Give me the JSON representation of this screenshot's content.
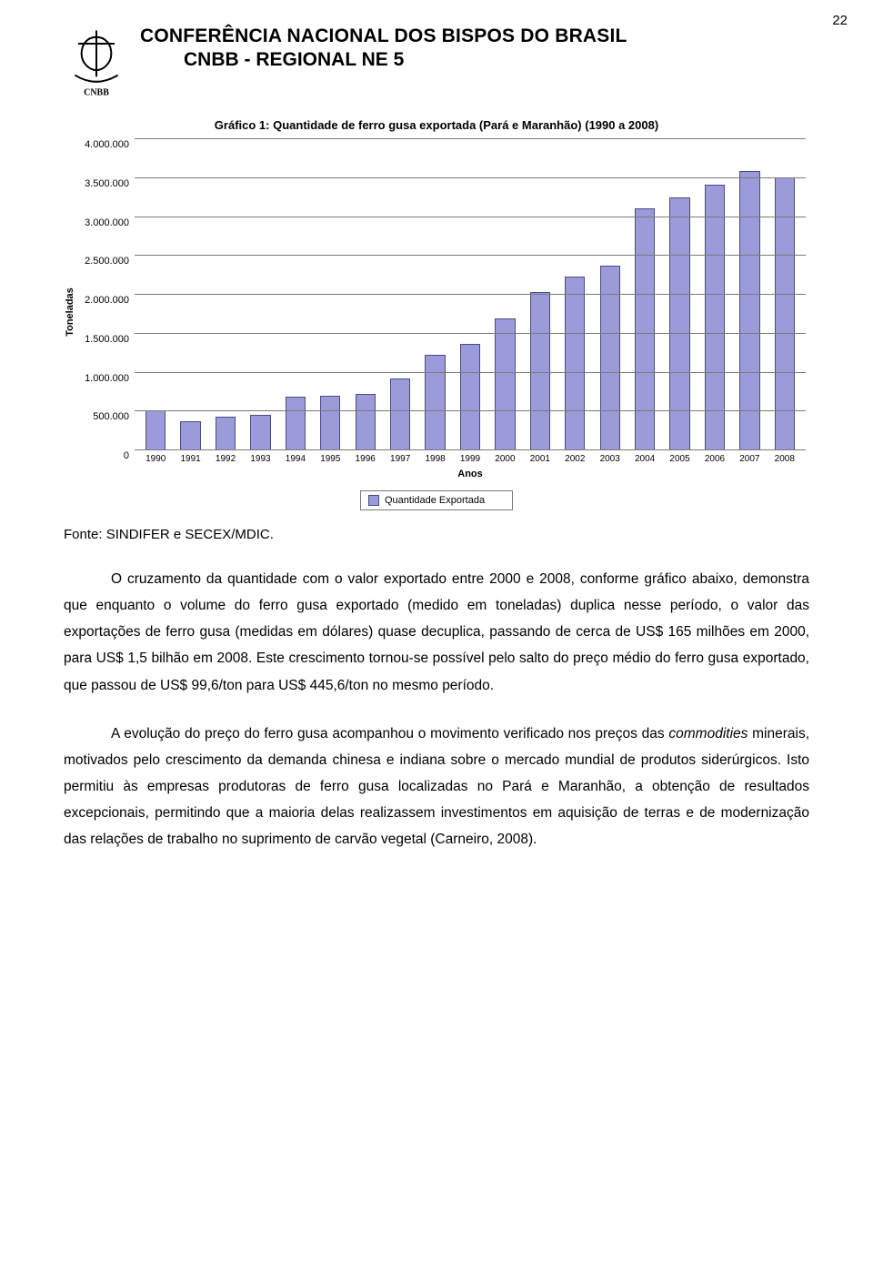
{
  "page_number": "22",
  "header": {
    "title": "CONFERÊNCIA NACIONAL DOS BISPOS DO BRASIL",
    "subtitle": "CNBB - REGIONAL NE 5",
    "logo_label": "CNBB"
  },
  "chart": {
    "type": "bar",
    "caption": "Gráfico 1: Quantidade de ferro gusa exportada (Pará e Maranhão) (1990 a 2008)",
    "ylabel": "Toneladas",
    "xlabel": "Anos",
    "categories": [
      "1990",
      "1991",
      "1992",
      "1993",
      "1994",
      "1995",
      "1996",
      "1997",
      "1998",
      "1999",
      "2000",
      "2001",
      "2002",
      "2003",
      "2004",
      "2005",
      "2006",
      "2007",
      "2008"
    ],
    "values": [
      520000,
      370000,
      430000,
      460000,
      690000,
      700000,
      720000,
      920000,
      1230000,
      1370000,
      1700000,
      2030000,
      2230000,
      2370000,
      3110000,
      3250000,
      3420000,
      3590000,
      3510000
    ],
    "y_ticks": [
      {
        "v": 0,
        "label": "0"
      },
      {
        "v": 500000,
        "label": "500.000"
      },
      {
        "v": 1000000,
        "label": "1.000.000"
      },
      {
        "v": 1500000,
        "label": "1.500.000"
      },
      {
        "v": 2000000,
        "label": "2.000.000"
      },
      {
        "v": 2500000,
        "label": "2.500.000"
      },
      {
        "v": 3000000,
        "label": "3.000.000"
      },
      {
        "v": 3500000,
        "label": "3.500.000"
      },
      {
        "v": 4000000,
        "label": "4.000.000"
      }
    ],
    "ylim": [
      0,
      4000000
    ],
    "bar_fill": "#9b9bd9",
    "bar_border": "#4a4a8a",
    "grid_color": "#7a7a7a",
    "background_color": "#ffffff",
    "tick_fontsize": 11,
    "caption_fontsize": 13,
    "bar_width": 0.58,
    "legend_label": "Quantidade Exportada"
  },
  "source_line": "Fonte: SINDIFER e SECEX/MDIC.",
  "paragraphs": {
    "p1": "O cruzamento da quantidade com o valor exportado entre 2000 e 2008, conforme gráfico abaixo, demonstra que enquanto o volume do ferro gusa exportado (medido em toneladas) duplica nesse período, o valor das exportações de ferro gusa (medidas em dólares) quase decuplica, passando de cerca de US$ 165 milhões em 2000, para US$ 1,5 bilhão em 2008. Este crescimento tornou-se possível pelo salto do preço médio do ferro gusa exportado, que passou de US$ 99,6/ton para US$ 445,6/ton no mesmo período.",
    "p2_pre": "A evolução do preço do ferro gusa acompanhou o movimento verificado nos preços das ",
    "p2_em": "commodities",
    "p2_post": " minerais, motivados pelo crescimento da demanda chinesa e indiana sobre o mercado mundial de produtos siderúrgicos. Isto permitiu às empresas produtoras de ferro gusa localizadas no Pará e Maranhão, a obtenção de resultados excepcionais, permitindo que a maioria delas realizassem investimentos em aquisição de terras e de modernização das relações de trabalho no suprimento de carvão vegetal (Carneiro, 2008)."
  }
}
